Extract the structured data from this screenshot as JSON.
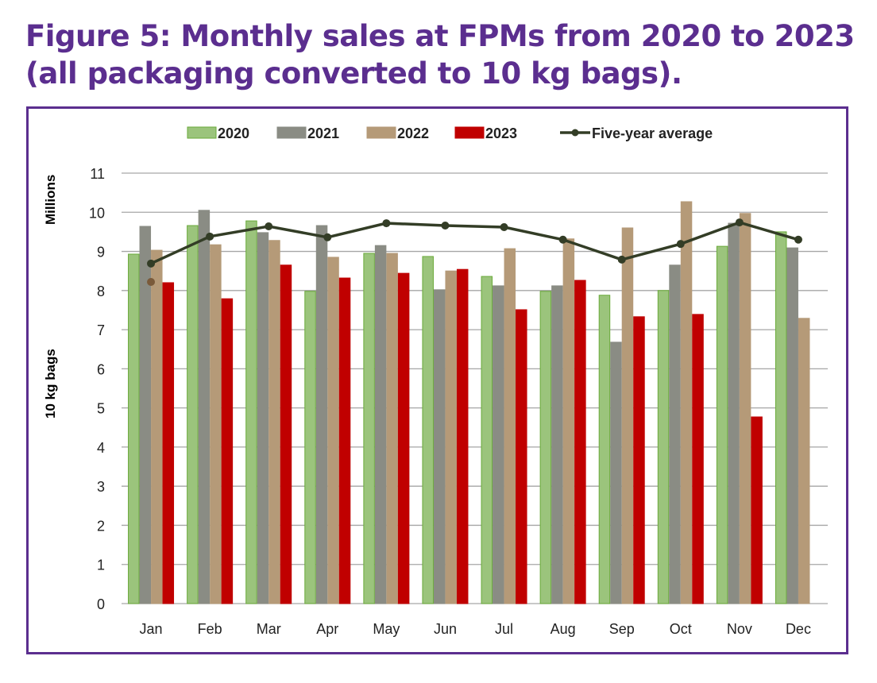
{
  "title_line1": "Figure 5: Monthly sales at FPMs from 2020 to 2023",
  "title_line2": "(all packaging converted to 10 kg bags).",
  "chart_data": {
    "type": "bar",
    "title": "Figure 5: Monthly sales at FPMs from 2020 to 2023 (all packaging converted to 10 kg bags).",
    "ylabel_top": "Millions",
    "ylabel": "10 kg bags",
    "ylim": [
      0,
      11
    ],
    "yticks": [
      "0",
      "1",
      "2",
      "3",
      "4",
      "5",
      "6",
      "7",
      "8",
      "9",
      "10",
      "11"
    ],
    "grid": true,
    "legend_position": "top",
    "categories": [
      "Jan",
      "Feb",
      "Mar",
      "Apr",
      "May",
      "Jun",
      "Jul",
      "Aug",
      "Sep",
      "Oct",
      "Nov",
      "Dec"
    ],
    "series": [
      {
        "name": "2020",
        "color": "#9bc47c",
        "edge": "#6aaa3a",
        "values": [
          8.93,
          9.66,
          9.78,
          7.98,
          8.95,
          8.87,
          8.36,
          7.98,
          7.88,
          8.0,
          9.13,
          9.5
        ]
      },
      {
        "name": "2021",
        "color": "#8a8c84",
        "edge": "#8a8c84",
        "values": [
          9.64,
          10.05,
          9.48,
          9.66,
          9.15,
          8.02,
          8.12,
          8.12,
          6.68,
          8.65,
          9.72,
          9.09
        ]
      },
      {
        "name": "2022",
        "color": "#b59a78",
        "edge": "#b59a78",
        "values": [
          9.03,
          9.17,
          9.28,
          8.85,
          8.95,
          8.5,
          9.07,
          9.32,
          9.6,
          10.27,
          9.97,
          7.29
        ]
      },
      {
        "name": "2023",
        "color": "#c00000",
        "edge": "#c00000",
        "values": [
          8.2,
          7.79,
          8.65,
          8.32,
          8.44,
          8.54,
          7.51,
          8.26,
          7.33,
          7.39,
          4.77,
          null
        ]
      }
    ],
    "line_series": {
      "name": "Five-year average",
      "color": "#333d26",
      "values": [
        8.69,
        9.38,
        9.64,
        9.36,
        9.72,
        9.66,
        9.62,
        9.3,
        8.79,
        9.19,
        9.74,
        9.3
      ]
    },
    "stray_marker": {
      "category": "Jan",
      "value": 8.22,
      "color": "#7a5a3a"
    }
  }
}
